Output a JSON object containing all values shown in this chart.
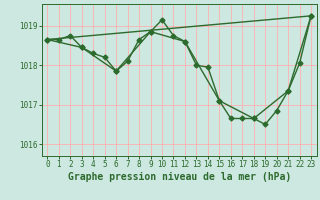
{
  "title": "Graphe pression niveau de la mer (hPa)",
  "bg_color": "#cce8e0",
  "grid_color": "#ffb0b0",
  "line_color": "#2d6a2d",
  "marker": "D",
  "markersize": 2.5,
  "linewidth": 1.0,
  "xlim": [
    -0.5,
    23.5
  ],
  "ylim": [
    1015.7,
    1019.55
  ],
  "yticks": [
    1016,
    1017,
    1018,
    1019
  ],
  "xticks": [
    0,
    1,
    2,
    3,
    4,
    5,
    6,
    7,
    8,
    9,
    10,
    11,
    12,
    13,
    14,
    15,
    16,
    17,
    18,
    19,
    20,
    21,
    22,
    23
  ],
  "line1_x": [
    0,
    1,
    2,
    3,
    4,
    5,
    6,
    7,
    8,
    9,
    10,
    11,
    12,
    13,
    14,
    15,
    16,
    17,
    18,
    19,
    20,
    21,
    22,
    23
  ],
  "line1_y": [
    1018.65,
    1018.65,
    1018.75,
    1018.45,
    1018.3,
    1018.2,
    1017.85,
    1018.1,
    1018.65,
    1018.85,
    1019.15,
    1018.75,
    1018.6,
    1018.0,
    1017.95,
    1017.1,
    1016.65,
    1016.65,
    1016.65,
    1016.5,
    1016.85,
    1017.35,
    1018.05,
    1019.25
  ],
  "line2_x": [
    0,
    3,
    6,
    9,
    12,
    15,
    18,
    21,
    23
  ],
  "line2_y": [
    1018.65,
    1018.45,
    1017.85,
    1018.85,
    1018.6,
    1017.1,
    1016.65,
    1017.35,
    1019.25
  ],
  "line3_x": [
    0,
    23
  ],
  "line3_y": [
    1018.65,
    1019.25
  ],
  "tick_fontsize": 5.5,
  "title_fontsize": 7.0
}
